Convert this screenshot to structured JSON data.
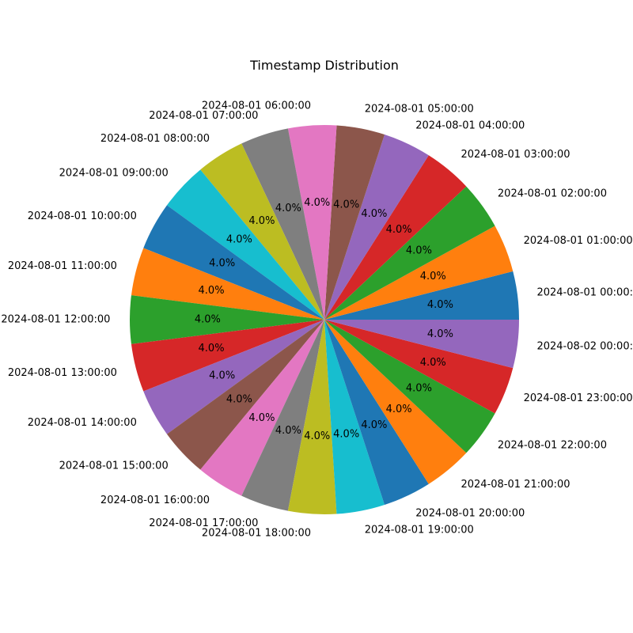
{
  "chart_data": {
    "type": "pie",
    "title": "Timestamp Distribution",
    "categories": [
      "2024-08-01 00:00:00",
      "2024-08-01 01:00:00",
      "2024-08-01 02:00:00",
      "2024-08-01 03:00:00",
      "2024-08-01 04:00:00",
      "2024-08-01 05:00:00",
      "2024-08-01 06:00:00",
      "2024-08-01 07:00:00",
      "2024-08-01 08:00:00",
      "2024-08-01 09:00:00",
      "2024-08-01 10:00:00",
      "2024-08-01 11:00:00",
      "2024-08-01 12:00:00",
      "2024-08-01 13:00:00",
      "2024-08-01 14:00:00",
      "2024-08-01 15:00:00",
      "2024-08-01 16:00:00",
      "2024-08-01 17:00:00",
      "2024-08-01 18:00:00",
      "2024-08-01 19:00:00",
      "2024-08-01 20:00:00",
      "2024-08-01 21:00:00",
      "2024-08-01 22:00:00",
      "2024-08-01 23:00:00",
      "2024-08-02 00:00:00"
    ],
    "values": [
      1,
      1,
      1,
      1,
      1,
      1,
      1,
      1,
      1,
      1,
      1,
      1,
      1,
      1,
      1,
      1,
      1,
      1,
      1,
      1,
      1,
      1,
      1,
      1,
      1
    ],
    "percent_labels": [
      "4.0%",
      "4.0%",
      "4.0%",
      "4.0%",
      "4.0%",
      "4.0%",
      "4.0%",
      "4.0%",
      "4.0%",
      "4.0%",
      "4.0%",
      "4.0%",
      "4.0%",
      "4.0%",
      "4.0%",
      "4.0%",
      "4.0%",
      "4.0%",
      "4.0%",
      "4.0%",
      "4.0%",
      "4.0%",
      "4.0%",
      "4.0%",
      "4.0%"
    ],
    "colors": [
      "#1f77b4",
      "#ff7f0e",
      "#2ca02c",
      "#d62728",
      "#9467bd",
      "#8c564b",
      "#e377c2",
      "#7f7f7f",
      "#bcbd22",
      "#17becf"
    ],
    "start_angle_deg": 0,
    "direction": "counterclockwise",
    "legend": "none"
  }
}
